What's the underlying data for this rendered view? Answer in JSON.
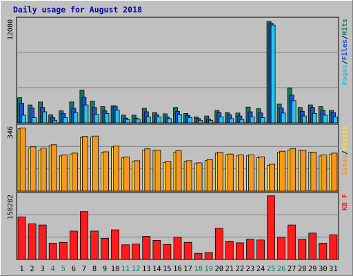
{
  "chart_data": {
    "type": "bar",
    "title": "Daily usage for August 2018",
    "categories": [
      "1",
      "2",
      "3",
      "4",
      "5",
      "6",
      "7",
      "8",
      "9",
      "10",
      "11",
      "12",
      "13",
      "14",
      "15",
      "16",
      "17",
      "18",
      "19",
      "20",
      "21",
      "22",
      "23",
      "24",
      "25",
      "26",
      "27",
      "28",
      "29",
      "30",
      "31"
    ],
    "weekend_days": [
      "4",
      "5",
      "11",
      "12",
      "18",
      "19",
      "25",
      "26"
    ],
    "panels": [
      {
        "id": "hits",
        "scale_max_label": "12080",
        "ylim": [
          0,
          12080
        ],
        "legend": [
          "Pages",
          "/",
          "Files",
          "/",
          "Hits"
        ],
        "series": [
          {
            "name": "Hits",
            "color": "#157a5b",
            "values": [
              2950,
              2100,
              2450,
              950,
              1400,
              2450,
              3850,
              2550,
              1900,
              2000,
              900,
              900,
              1700,
              1200,
              1050,
              1800,
              1100,
              700,
              800,
              1450,
              1200,
              1150,
              1850,
              1650,
              11900,
              2200,
              4100,
              1800,
              2100,
              1900,
              1450
            ]
          },
          {
            "name": "Files",
            "color": "#1c4fdc",
            "values": [
              2300,
              1750,
              1800,
              600,
              1100,
              1700,
              3000,
              1800,
              1400,
              1950,
              550,
              550,
              1300,
              950,
              700,
              1350,
              850,
              500,
              450,
              1200,
              950,
              800,
              1300,
              1150,
              11700,
              1750,
              3250,
              1350,
              1800,
              1450,
              1200
            ]
          },
          {
            "name": "Pages",
            "color": "#21c8ee",
            "values": [
              900,
              600,
              1300,
              300,
              600,
              1200,
              2100,
              1000,
              1100,
              1500,
              400,
              450,
              700,
              700,
              500,
              1000,
              600,
              300,
              300,
              700,
              500,
              400,
              700,
              600,
              11500,
              1150,
              2600,
              800,
              1100,
              900,
              700
            ]
          }
        ]
      },
      {
        "id": "sites",
        "scale_max_label": "346",
        "ylim": [
          0,
          346
        ],
        "legend": [
          "Sites",
          "/",
          "Visits"
        ],
        "series": [
          {
            "name": "Visits",
            "color": "#ffdc2d",
            "values": [
              336,
              232,
              222,
              245,
              190,
              200,
              290,
              292,
              207,
              238,
              180,
              160,
              220,
              220,
              155,
              210,
              160,
              150,
              165,
              205,
              195,
              190,
              190,
              180,
              140,
              210,
              222,
              220,
              210,
              190,
              200
            ]
          },
          {
            "name": "Sites",
            "color": "#f7971f",
            "values": [
              340,
              239,
              233,
              250,
              195,
              205,
              295,
              297,
              212,
              243,
              184,
              164,
              228,
              220,
              159,
              218,
              164,
              153,
              170,
              210,
              200,
              195,
              195,
              185,
              145,
              215,
              230,
              220,
              210,
              195,
              205
            ]
          }
        ]
      },
      {
        "id": "kbytes",
        "scale_max_label": "158282",
        "ylim": [
          0,
          158282
        ],
        "legend": [
          "KB",
          "F"
        ],
        "series": [
          {
            "name": "KBytes",
            "color": "#ff1b1b",
            "values": [
              105000,
              88000,
              85000,
              40000,
              42000,
              70000,
              118000,
              70000,
              52000,
              73000,
              36000,
              38000,
              57000,
              47000,
              37000,
              55000,
              42000,
              15000,
              17000,
              77000,
              45000,
              41000,
              50000,
              48000,
              157000,
              55000,
              85000,
              50000,
              65000,
              40000,
              61000
            ]
          }
        ]
      }
    ]
  }
}
